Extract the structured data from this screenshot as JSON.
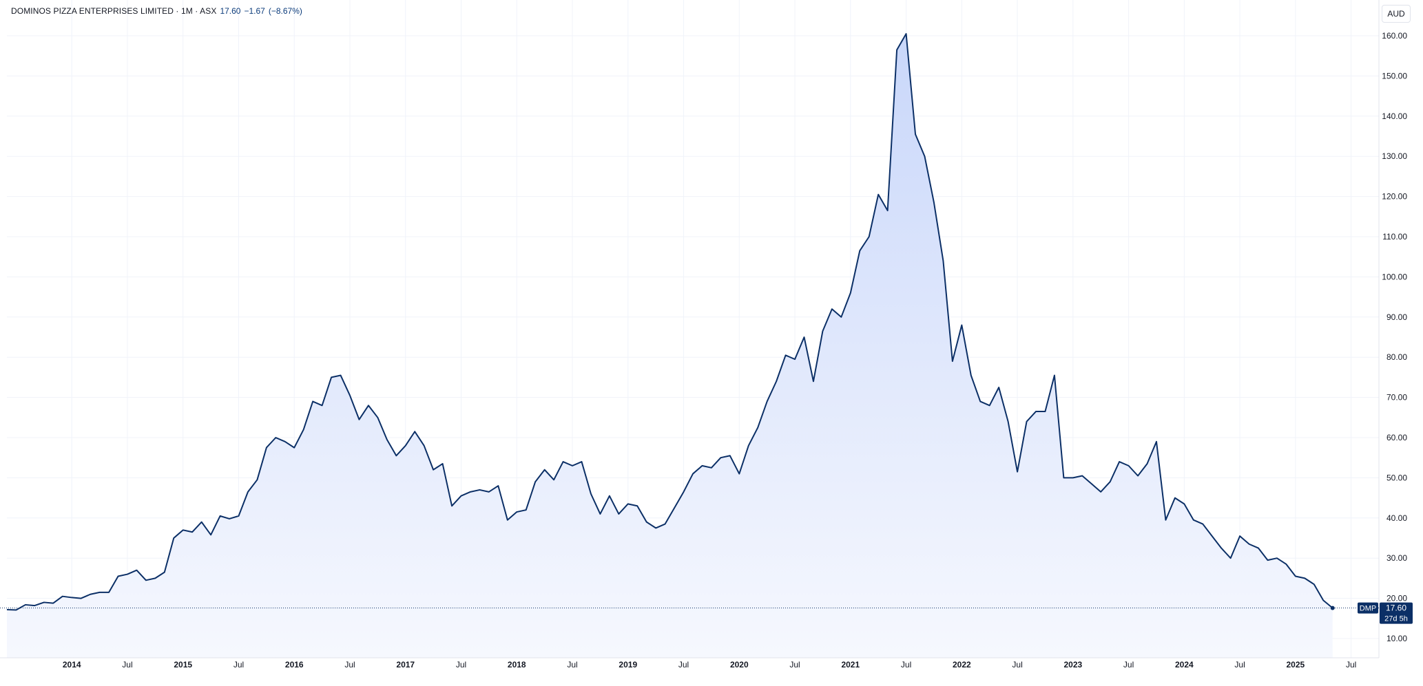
{
  "legend": {
    "symbol_line": "DOMINOS PIZZA ENTERPRISES LIMITED · 1M · ASX",
    "last": "17.60",
    "change": "−1.67",
    "change_pct": "(−8.67%)"
  },
  "currency": "AUD",
  "price_badge": {
    "ticker": "DMP",
    "price": "17.60",
    "countdown": "27d 5h"
  },
  "colors": {
    "line": "#0b2f66",
    "area_top": "#c9d7fa",
    "area_bottom": "#f6f8fe",
    "grid": "#f0f3fa",
    "badge": "#0b2f66"
  },
  "chart_data": {
    "type": "area",
    "title": "",
    "xlabel": "",
    "ylabel": "",
    "ylim": [
      5,
      165
    ],
    "grid": true,
    "y_ticks": [
      10,
      20,
      30,
      40,
      50,
      60,
      70,
      80,
      90,
      100,
      110,
      120,
      130,
      140,
      150,
      160
    ],
    "x_ticks": [
      {
        "label": "2014",
        "date": "2014-01",
        "bold": true
      },
      {
        "label": "Jul",
        "date": "2014-07",
        "bold": false
      },
      {
        "label": "2015",
        "date": "2015-01",
        "bold": true
      },
      {
        "label": "Jul",
        "date": "2015-07",
        "bold": false
      },
      {
        "label": "2016",
        "date": "2016-01",
        "bold": true
      },
      {
        "label": "Jul",
        "date": "2016-07",
        "bold": false
      },
      {
        "label": "2017",
        "date": "2017-01",
        "bold": true
      },
      {
        "label": "Jul",
        "date": "2017-07",
        "bold": false
      },
      {
        "label": "2018",
        "date": "2018-01",
        "bold": true
      },
      {
        "label": "Jul",
        "date": "2018-07",
        "bold": false
      },
      {
        "label": "2019",
        "date": "2019-01",
        "bold": true
      },
      {
        "label": "Jul",
        "date": "2019-07",
        "bold": false
      },
      {
        "label": "2020",
        "date": "2020-01",
        "bold": true
      },
      {
        "label": "Jul",
        "date": "2020-07",
        "bold": false
      },
      {
        "label": "2021",
        "date": "2021-01",
        "bold": true
      },
      {
        "label": "Jul",
        "date": "2021-07",
        "bold": false
      },
      {
        "label": "2022",
        "date": "2022-01",
        "bold": true
      },
      {
        "label": "Jul",
        "date": "2022-07",
        "bold": false
      },
      {
        "label": "2023",
        "date": "2023-01",
        "bold": true
      },
      {
        "label": "Jul",
        "date": "2023-07",
        "bold": false
      },
      {
        "label": "2024",
        "date": "2024-01",
        "bold": true
      },
      {
        "label": "Jul",
        "date": "2024-07",
        "bold": false
      },
      {
        "label": "2025",
        "date": "2025-01",
        "bold": true
      },
      {
        "label": "Jul",
        "date": "2025-07",
        "bold": false
      }
    ],
    "x_start": "2013-06",
    "x_end": "2025-10",
    "last_value": 17.6,
    "series": [
      {
        "points": [
          [
            "2013-06",
            17.2
          ],
          [
            "2013-07",
            17.1
          ],
          [
            "2013-08",
            18.4
          ],
          [
            "2013-09",
            18.2
          ],
          [
            "2013-10",
            19.0
          ],
          [
            "2013-11",
            18.8
          ],
          [
            "2013-12",
            20.5
          ],
          [
            "2014-01",
            20.2
          ],
          [
            "2014-02",
            20.0
          ],
          [
            "2014-03",
            21.0
          ],
          [
            "2014-04",
            21.5
          ],
          [
            "2014-05",
            21.5
          ],
          [
            "2014-06",
            25.5
          ],
          [
            "2014-07",
            26.0
          ],
          [
            "2014-08",
            27.0
          ],
          [
            "2014-09",
            24.5
          ],
          [
            "2014-10",
            25.0
          ],
          [
            "2014-11",
            26.5
          ],
          [
            "2014-12",
            35.0
          ],
          [
            "2015-01",
            37.0
          ],
          [
            "2015-02",
            36.5
          ],
          [
            "2015-03",
            39.0
          ],
          [
            "2015-04",
            35.8
          ],
          [
            "2015-05",
            40.5
          ],
          [
            "2015-06",
            39.8
          ],
          [
            "2015-07",
            40.5
          ],
          [
            "2015-08",
            46.5
          ],
          [
            "2015-09",
            49.5
          ],
          [
            "2015-10",
            57.5
          ],
          [
            "2015-11",
            60.0
          ],
          [
            "2015-12",
            59.0
          ],
          [
            "2016-01",
            57.5
          ],
          [
            "2016-02",
            62.0
          ],
          [
            "2016-03",
            69.0
          ],
          [
            "2016-04",
            68.0
          ],
          [
            "2016-05",
            75.0
          ],
          [
            "2016-06",
            75.5
          ],
          [
            "2016-07",
            70.5
          ],
          [
            "2016-08",
            64.5
          ],
          [
            "2016-09",
            68.0
          ],
          [
            "2016-10",
            65.0
          ],
          [
            "2016-11",
            59.5
          ],
          [
            "2016-12",
            55.5
          ],
          [
            "2017-01",
            58.0
          ],
          [
            "2017-02",
            61.5
          ],
          [
            "2017-03",
            58.0
          ],
          [
            "2017-04",
            52.0
          ],
          [
            "2017-05",
            53.5
          ],
          [
            "2017-06",
            43.0
          ],
          [
            "2017-07",
            45.5
          ],
          [
            "2017-08",
            46.5
          ],
          [
            "2017-09",
            47.0
          ],
          [
            "2017-10",
            46.5
          ],
          [
            "2017-11",
            48.0
          ],
          [
            "2017-12",
            39.5
          ],
          [
            "2018-01",
            41.5
          ],
          [
            "2018-02",
            42.0
          ],
          [
            "2018-03",
            49.0
          ],
          [
            "2018-04",
            52.0
          ],
          [
            "2018-05",
            49.5
          ],
          [
            "2018-06",
            54.0
          ],
          [
            "2018-07",
            53.0
          ],
          [
            "2018-08",
            54.0
          ],
          [
            "2018-09",
            46.0
          ],
          [
            "2018-10",
            41.0
          ],
          [
            "2018-11",
            45.5
          ],
          [
            "2018-12",
            41.0
          ],
          [
            "2019-01",
            43.5
          ],
          [
            "2019-02",
            43.0
          ],
          [
            "2019-03",
            39.0
          ],
          [
            "2019-04",
            37.5
          ],
          [
            "2019-05",
            38.5
          ],
          [
            "2019-06",
            42.5
          ],
          [
            "2019-07",
            46.5
          ],
          [
            "2019-08",
            51.0
          ],
          [
            "2019-09",
            53.0
          ],
          [
            "2019-10",
            52.5
          ],
          [
            "2019-11",
            55.0
          ],
          [
            "2019-12",
            55.5
          ],
          [
            "2020-01",
            51.0
          ],
          [
            "2020-02",
            58.0
          ],
          [
            "2020-03",
            62.5
          ],
          [
            "2020-04",
            69.0
          ],
          [
            "2020-05",
            74.0
          ],
          [
            "2020-06",
            80.5
          ],
          [
            "2020-07",
            79.5
          ],
          [
            "2020-08",
            85.0
          ],
          [
            "2020-09",
            74.0
          ],
          [
            "2020-10",
            86.5
          ],
          [
            "2020-11",
            92.0
          ],
          [
            "2020-12",
            90.0
          ],
          [
            "2021-01",
            96.0
          ],
          [
            "2021-02",
            106.5
          ],
          [
            "2021-03",
            110.0
          ],
          [
            "2021-04",
            120.5
          ],
          [
            "2021-05",
            116.5
          ],
          [
            "2021-06",
            156.5
          ],
          [
            "2021-07",
            160.5
          ],
          [
            "2021-08",
            135.5
          ],
          [
            "2021-09",
            130.0
          ],
          [
            "2021-10",
            118.5
          ],
          [
            "2021-11",
            104.0
          ],
          [
            "2021-12",
            79.0
          ],
          [
            "2022-01",
            88.0
          ],
          [
            "2022-02",
            75.5
          ],
          [
            "2022-03",
            69.0
          ],
          [
            "2022-04",
            68.0
          ],
          [
            "2022-05",
            72.5
          ],
          [
            "2022-06",
            64.0
          ],
          [
            "2022-07",
            51.5
          ],
          [
            "2022-08",
            64.0
          ],
          [
            "2022-09",
            66.5
          ],
          [
            "2022-10",
            66.5
          ],
          [
            "2022-11",
            75.5
          ],
          [
            "2022-12",
            50.0
          ],
          [
            "2023-01",
            50.0
          ],
          [
            "2023-02",
            50.5
          ],
          [
            "2023-03",
            48.5
          ],
          [
            "2023-04",
            46.5
          ],
          [
            "2023-05",
            49.0
          ],
          [
            "2023-06",
            54.0
          ],
          [
            "2023-07",
            53.0
          ],
          [
            "2023-08",
            50.5
          ],
          [
            "2023-09",
            53.5
          ],
          [
            "2023-10",
            59.0
          ],
          [
            "2023-11",
            39.5
          ],
          [
            "2023-12",
            45.0
          ],
          [
            "2024-01",
            43.5
          ],
          [
            "2024-02",
            39.5
          ],
          [
            "2024-03",
            38.5
          ],
          [
            "2024-04",
            35.5
          ],
          [
            "2024-05",
            32.5
          ],
          [
            "2024-06",
            30.0
          ],
          [
            "2024-07",
            35.5
          ],
          [
            "2024-08",
            33.5
          ],
          [
            "2024-09",
            32.5
          ],
          [
            "2024-10",
            29.5
          ],
          [
            "2024-11",
            30.0
          ],
          [
            "2024-12",
            28.5
          ],
          [
            "2025-01",
            25.5
          ],
          [
            "2025-02",
            25.0
          ],
          [
            "2025-03",
            23.5
          ],
          [
            "2025-04",
            19.5
          ],
          [
            "2025-05",
            17.6
          ]
        ]
      }
    ]
  }
}
